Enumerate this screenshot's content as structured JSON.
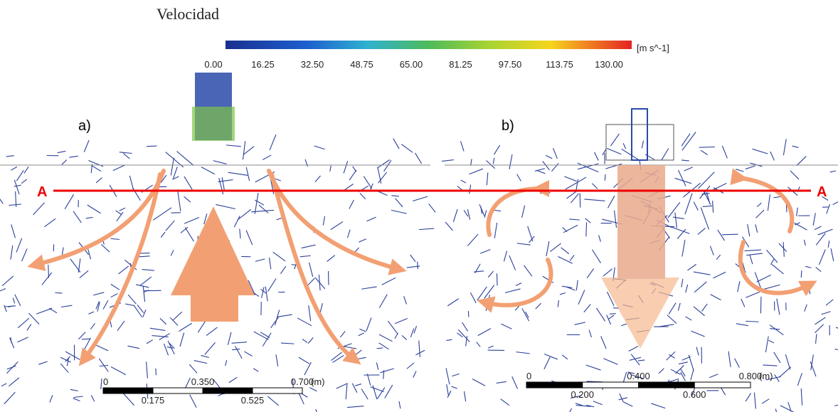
{
  "title": "Velocidad",
  "colorbar": {
    "ticks": [
      "0.00",
      "16.25",
      "32.50",
      "48.75",
      "65.00",
      "81.25",
      "97.50",
      "113.75",
      "130.00"
    ],
    "unit": "[m s^-1]"
  },
  "panels": [
    {
      "label": "a)",
      "scale": {
        "top": [
          "0",
          "0.350",
          "0.700",
          "(m)"
        ],
        "bottom": [
          "0.175",
          "0.525"
        ]
      }
    },
    {
      "label": "b)",
      "scale": {
        "top": [
          "0",
          "0.400",
          "0.800",
          "(m)"
        ],
        "bottom": [
          "0.200",
          "0.600"
        ]
      }
    }
  ],
  "section": {
    "left": "A",
    "right": "A"
  }
}
